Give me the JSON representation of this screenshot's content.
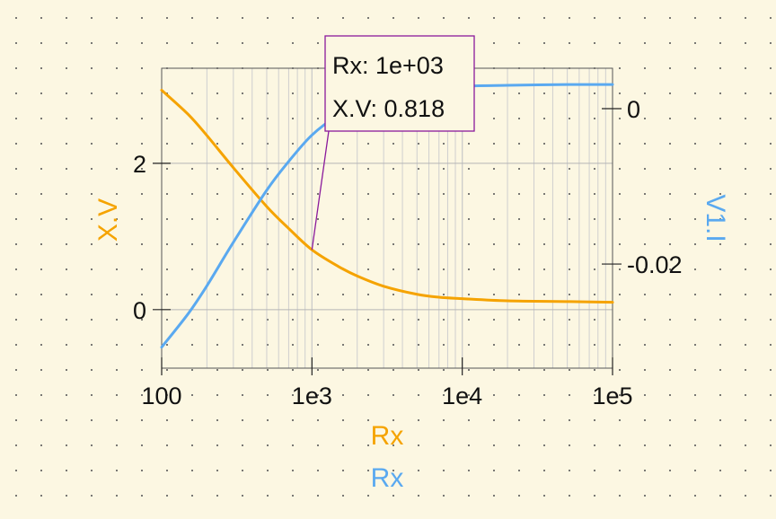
{
  "chart_data": {
    "type": "line",
    "x_scale": "log",
    "xlim": [
      100,
      100000
    ],
    "x_ticks": [
      "100",
      "1e3",
      "1e4",
      "1e5"
    ],
    "xlabels": [
      "Rx",
      "Rx"
    ],
    "left_axis": {
      "label": "X.V",
      "ylim": [
        -0.8,
        3.3
      ],
      "ticks": [
        {
          "value": 0,
          "label": "0"
        },
        {
          "value": 2,
          "label": "2"
        }
      ],
      "color": "#f5a300"
    },
    "right_axis": {
      "label": "V1.I",
      "ylim": [
        -0.0334,
        0.0052
      ],
      "ticks": [
        {
          "value": 0,
          "label": "0"
        },
        {
          "value": -0.02,
          "label": "-0.02"
        }
      ],
      "color": "#5aa9f0"
    },
    "grid": true,
    "series": [
      {
        "axis": "left",
        "color": "#f5a300",
        "x": [
          100,
          150,
          200,
          300,
          500,
          700,
          1000,
          1500,
          2000,
          3000,
          5000,
          7000,
          10000,
          20000,
          50000,
          100000
        ],
        "values": [
          3.0,
          2.67,
          2.38,
          1.94,
          1.41,
          1.11,
          0.818,
          0.59,
          0.46,
          0.32,
          0.21,
          0.17,
          0.15,
          0.12,
          0.11,
          0.1
        ]
      },
      {
        "axis": "right",
        "color": "#5aa9f0",
        "x": [
          100,
          150,
          200,
          300,
          500,
          700,
          1000,
          1500,
          2000,
          3000,
          5000,
          7000,
          10000,
          20000,
          50000,
          100000
        ],
        "values": [
          -0.0307,
          -0.0264,
          -0.0228,
          -0.0172,
          -0.0105,
          -0.0068,
          -0.0034,
          -0.0008,
          0.0004,
          0.0016,
          0.0024,
          0.0027,
          0.0029,
          0.003,
          0.0031,
          0.0031
        ]
      }
    ],
    "cursor": {
      "x": 1000,
      "y": 0.818,
      "lines": [
        "Rx: 1e+03",
        "X.V: 0.818"
      ],
      "color": "#8a1a9c"
    }
  }
}
